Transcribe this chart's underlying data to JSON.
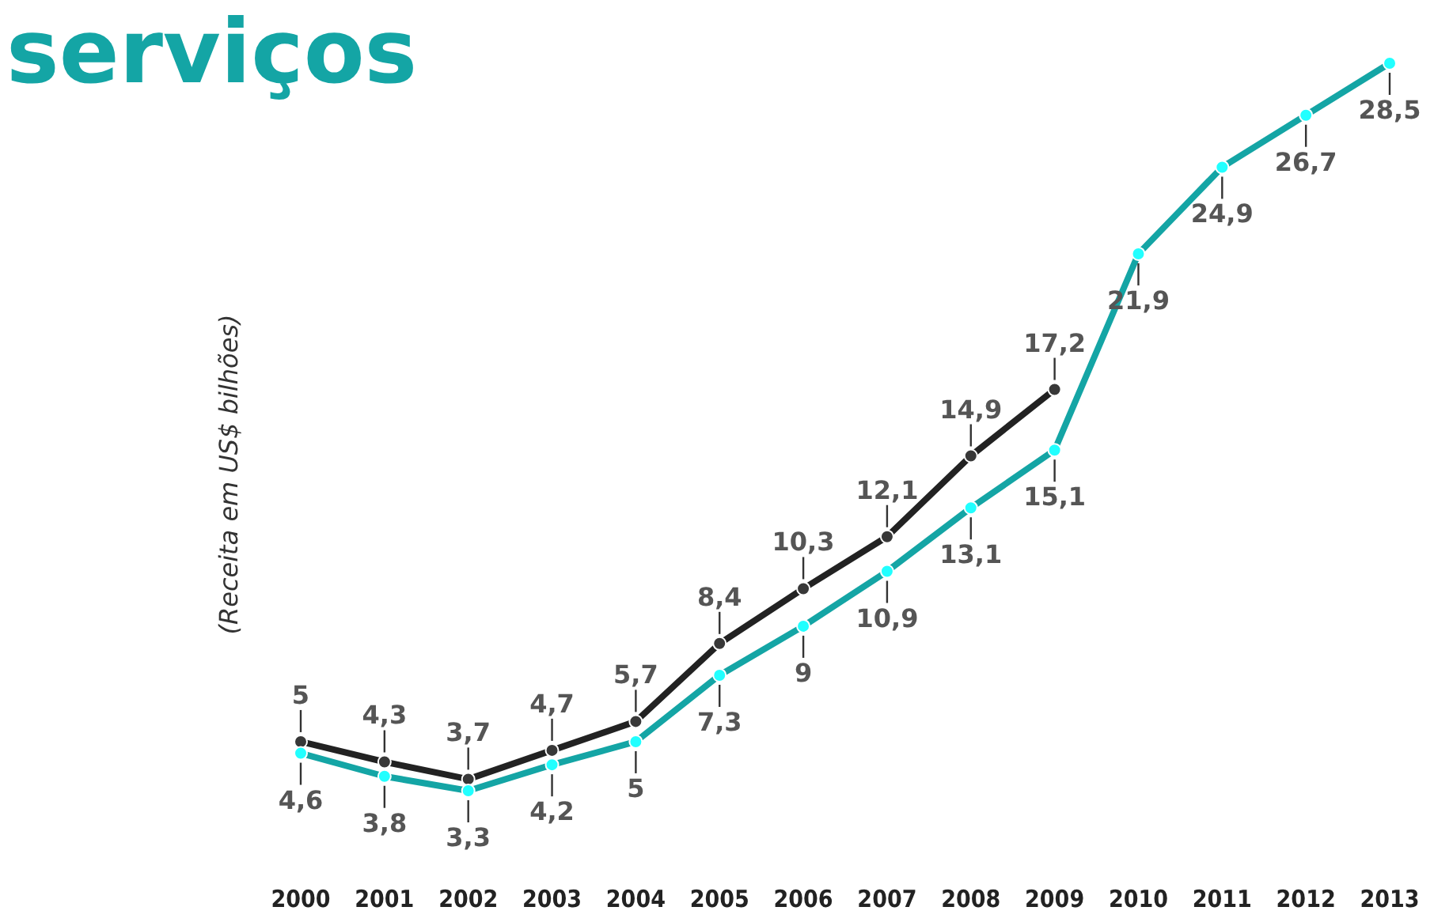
{
  "chart_data": {
    "type": "line",
    "title": "serviços",
    "ylabel": "(Receita em US$ bilhões)",
    "categories": [
      "2000",
      "2001",
      "2002",
      "2003",
      "2004",
      "2005",
      "2006",
      "2007",
      "2008",
      "2009",
      "2010",
      "2011",
      "2012",
      "2013"
    ],
    "series": [
      {
        "color": "#222222",
        "values": [
          5,
          4.3,
          3.7,
          4.7,
          5.7,
          8.4,
          10.3,
          12.1,
          14.9,
          17.2,
          null,
          null,
          null,
          null
        ],
        "value_labels": [
          "5",
          "4,3",
          "3,7",
          "4,7",
          "5,7",
          "8,4",
          "10,3",
          "12,1",
          "14,9",
          "17,2",
          null,
          null,
          null,
          null
        ]
      },
      {
        "color": "#14a5a5",
        "values": [
          4.6,
          3.8,
          3.3,
          4.2,
          5,
          7.3,
          9,
          10.9,
          13.1,
          15.1,
          21.9,
          24.9,
          26.7,
          28.5
        ],
        "value_labels": [
          "4,6",
          "3,8",
          "3,3",
          "4,2",
          "5",
          "7,3",
          "9",
          "10,9",
          "13,1",
          "15,1",
          "21,9",
          "24,9",
          "26,7",
          "28,5"
        ]
      }
    ],
    "tick_labels": "x",
    "marker": "circle",
    "line_style": "solid"
  }
}
